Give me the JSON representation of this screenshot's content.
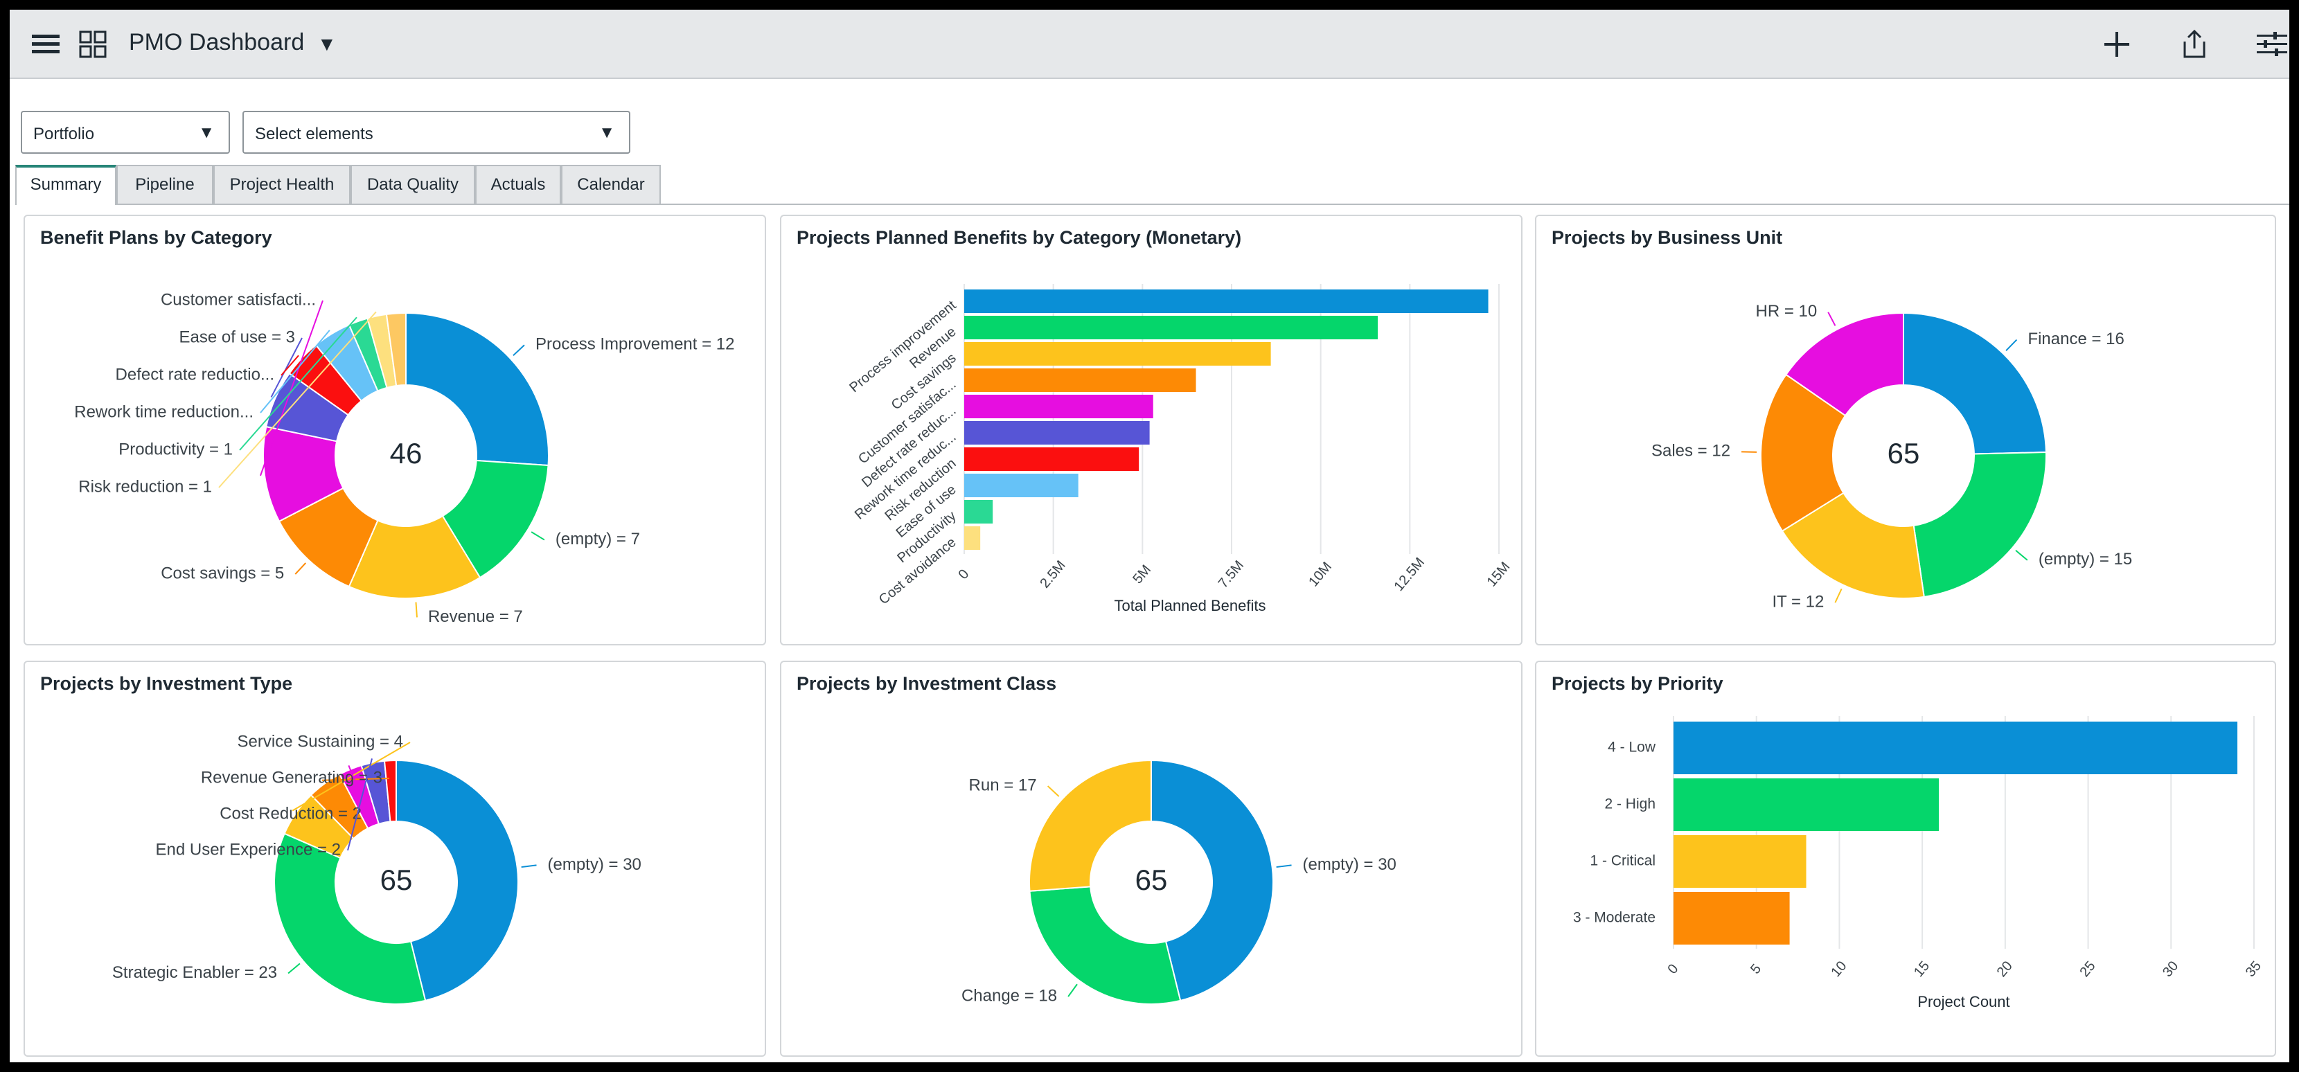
{
  "app": {
    "title": "PMO Dashboard"
  },
  "header_icons": {
    "menu": "hamburger-icon",
    "grid": "grid-icon",
    "add": "plus-icon",
    "share": "share-icon",
    "filter": "sliders-icon"
  },
  "filters": {
    "portfolio": "Portfolio",
    "elements": "Select elements"
  },
  "tabs": [
    "Summary",
    "Pipeline",
    "Project Health",
    "Data Quality",
    "Actuals",
    "Calendar"
  ],
  "active_tab": "Summary",
  "colors": {
    "blue": "#0a8fd6",
    "green": "#05d66b",
    "yellow": "#fdc31c",
    "orange": "#fd8a05",
    "magenta": "#e60ee0",
    "indigo": "#5755d6",
    "red": "#fb0f0f",
    "sky": "#66c2f7",
    "teal": "#2ad994",
    "pale": "#fde07e"
  },
  "cards": {
    "benefit_plans": {
      "title": "Benefit Plans by Category",
      "total": "46"
    },
    "planned_benefits": {
      "title": "Projects Planned Benefits by Category (Monetary)"
    },
    "business_unit": {
      "title": "Projects by Business Unit",
      "total": "65"
    },
    "investment_type": {
      "title": "Projects by Investment Type",
      "total": "65"
    },
    "investment_class": {
      "title": "Projects by Investment Class",
      "total": "65"
    },
    "priority": {
      "title": "Projects by Priority"
    }
  },
  "chart_data": [
    {
      "type": "pie",
      "title": "Benefit Plans by Category",
      "center_label": "46",
      "slices": [
        {
          "label": "Process Improvement = 12",
          "value": 12,
          "color": "#0a8fd6"
        },
        {
          "label": "(empty) = 7",
          "value": 7,
          "color": "#05d66b"
        },
        {
          "label": "Revenue = 7",
          "value": 7,
          "color": "#fdc31c"
        },
        {
          "label": "Cost savings = 5",
          "value": 5,
          "color": "#fd8a05"
        },
        {
          "label": "Customer satisfacti...",
          "value": 5,
          "color": "#e60ee0"
        },
        {
          "label": "Ease of use = 3",
          "value": 3,
          "color": "#5755d6"
        },
        {
          "label": "Defect rate reductio...",
          "value": 2,
          "color": "#fb0f0f"
        },
        {
          "label": "Rework time reduction...",
          "value": 2,
          "color": "#66c2f7"
        },
        {
          "label": "Productivity = 1",
          "value": 1,
          "color": "#2ad994"
        },
        {
          "label": "Risk reduction = 1",
          "value": 1,
          "color": "#fde07e"
        },
        {
          "label": "",
          "value": 1,
          "color": "#fdc862"
        }
      ]
    },
    {
      "type": "bar",
      "title": "Projects Planned Benefits by Category (Monetary)",
      "orientation": "horizontal",
      "xlabel": "Total Planned Benefits",
      "categories": [
        "Process improvement",
        "Revenue",
        "Cost savings",
        "Customer satisfac...",
        "Defect rate reduc...",
        "Rework time reduc...",
        "Risk reduction",
        "Ease of use",
        "Productivity",
        "Cost avoidance"
      ],
      "values": [
        14700000,
        11600000,
        8600000,
        6500000,
        5300000,
        5200000,
        4900000,
        3200000,
        800000,
        450000
      ],
      "colors": [
        "#0a8fd6",
        "#05d66b",
        "#fdc31c",
        "#fd8a05",
        "#e60ee0",
        "#5755d6",
        "#fb0f0f",
        "#66c2f7",
        "#2ad994",
        "#fde07e"
      ],
      "xticks": [
        "0",
        "2.5M",
        "5M",
        "7.5M",
        "10M",
        "12.5M",
        "15M"
      ],
      "xlim": [
        0,
        15000000
      ],
      "grid": true
    },
    {
      "type": "pie",
      "title": "Projects by Business Unit",
      "center_label": "65",
      "slices": [
        {
          "label": "Finance = 16",
          "value": 16,
          "color": "#0a8fd6"
        },
        {
          "label": "(empty) = 15",
          "value": 15,
          "color": "#05d66b"
        },
        {
          "label": "IT = 12",
          "value": 12,
          "color": "#fdc31c"
        },
        {
          "label": "Sales = 12",
          "value": 12,
          "color": "#fd8a05"
        },
        {
          "label": "HR = 10",
          "value": 10,
          "color": "#e60ee0"
        }
      ]
    },
    {
      "type": "pie",
      "title": "Projects by Investment Type",
      "center_label": "65",
      "slices": [
        {
          "label": "(empty) = 30",
          "value": 30,
          "color": "#0a8fd6"
        },
        {
          "label": "Strategic Enabler = 23",
          "value": 23,
          "color": "#05d66b"
        },
        {
          "label": "Service Sustaining = 4",
          "value": 4,
          "color": "#fdc31c"
        },
        {
          "label": "Revenue Generating = 3",
          "value": 3,
          "color": "#fd8a05"
        },
        {
          "label": "Cost Reduction = 2",
          "value": 2,
          "color": "#e60ee0"
        },
        {
          "label": "End User Experience = 2",
          "value": 2,
          "color": "#5755d6"
        },
        {
          "label": "",
          "value": 1,
          "color": "#fb0f0f"
        }
      ]
    },
    {
      "type": "pie",
      "title": "Projects by Investment Class",
      "center_label": "65",
      "slices": [
        {
          "label": "(empty) = 30",
          "value": 30,
          "color": "#0a8fd6"
        },
        {
          "label": "Change = 18",
          "value": 18,
          "color": "#05d66b"
        },
        {
          "label": "Run = 17",
          "value": 17,
          "color": "#fdc31c"
        }
      ]
    },
    {
      "type": "bar",
      "title": "Projects by Priority",
      "orientation": "horizontal",
      "xlabel": "Project Count",
      "categories": [
        "4 - Low",
        "2 - High",
        "1 - Critical",
        "3 - Moderate"
      ],
      "values": [
        34,
        16,
        8,
        7
      ],
      "colors": [
        "#0a8fd6",
        "#05d66b",
        "#fdc31c",
        "#fd8a05"
      ],
      "xticks": [
        "0",
        "5",
        "10",
        "15",
        "20",
        "25",
        "30",
        "35"
      ],
      "xlim": [
        0,
        35
      ],
      "grid": true
    }
  ]
}
